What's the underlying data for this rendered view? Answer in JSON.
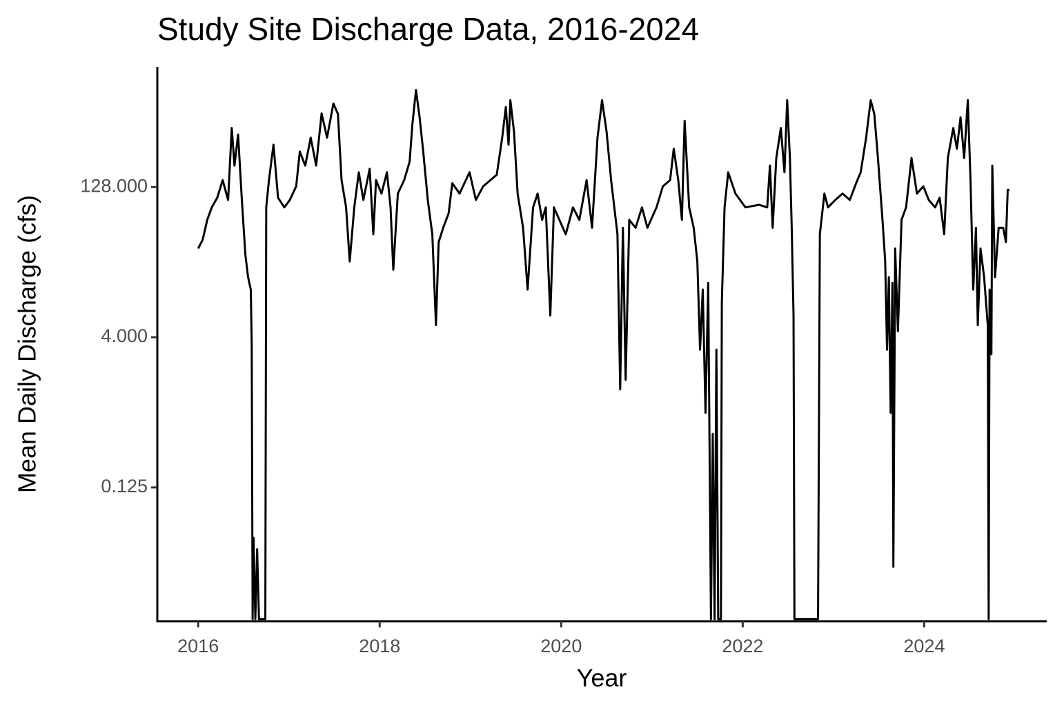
{
  "chart_data": {
    "type": "line",
    "title": "Study Site Discharge Data, 2016-2024",
    "x_label": "Year",
    "y_label": "Mean Daily Discharge (cfs)",
    "color": "#000000",
    "ylog": true,
    "grid": false,
    "xlim": [
      2015.55,
      2025.35
    ],
    "ylim": [
      0.0057,
      2048
    ],
    "xticks": [
      2016,
      2018,
      2020,
      2022,
      2024
    ],
    "yticks": [
      0.125,
      {
        "value": 4,
        "label": "4.000"
      },
      {
        "value": 128,
        "label": "128.000"
      }
    ],
    "x": [
      2016.0,
      2016.05,
      2016.1,
      2016.15,
      2016.21,
      2016.27,
      2016.33,
      2016.37,
      2016.4,
      2016.44,
      2016.48,
      2016.52,
      2016.55,
      2016.58,
      2016.59,
      2016.6,
      2016.61,
      2016.63,
      2016.65,
      2016.67,
      2016.74,
      2016.75,
      2016.78,
      2016.83,
      2016.88,
      2016.95,
      2017.01,
      2017.08,
      2017.12,
      2017.18,
      2017.24,
      2017.3,
      2017.36,
      2017.42,
      2017.49,
      2017.54,
      2017.58,
      2017.63,
      2017.67,
      2017.72,
      2017.77,
      2017.82,
      2017.89,
      2017.93,
      2017.96,
      2018.02,
      2018.08,
      2018.12,
      2018.15,
      2018.2,
      2018.27,
      2018.33,
      2018.36,
      2018.4,
      2018.44,
      2018.48,
      2018.53,
      2018.58,
      2018.62,
      2018.65,
      2018.7,
      2018.76,
      2018.8,
      2018.88,
      2018.99,
      2019.06,
      2019.14,
      2019.22,
      2019.29,
      2019.35,
      2019.39,
      2019.42,
      2019.44,
      2019.48,
      2019.52,
      2019.58,
      2019.63,
      2019.69,
      2019.74,
      2019.79,
      2019.83,
      2019.88,
      2019.92,
      2019.98,
      2020.05,
      2020.13,
      2020.2,
      2020.28,
      2020.34,
      2020.4,
      2020.45,
      2020.5,
      2020.55,
      2020.62,
      2020.65,
      2020.68,
      2020.71,
      2020.75,
      2020.82,
      2020.89,
      2020.95,
      2021.05,
      2021.12,
      2021.2,
      2021.24,
      2021.29,
      2021.33,
      2021.36,
      2021.41,
      2021.46,
      2021.5,
      2021.53,
      2021.56,
      2021.59,
      2021.62,
      2021.65,
      2021.67,
      2021.69,
      2021.71,
      2021.73,
      2021.76,
      2021.77,
      2021.8,
      2021.84,
      2021.92,
      2022.03,
      2022.18,
      2022.27,
      2022.3,
      2022.33,
      2022.37,
      2022.42,
      2022.46,
      2022.49,
      2022.52,
      2022.54,
      2022.56,
      2022.57,
      2022.83,
      2022.85,
      2022.9,
      2022.94,
      2023.02,
      2023.1,
      2023.18,
      2023.25,
      2023.3,
      2023.36,
      2023.41,
      2023.45,
      2023.49,
      2023.54,
      2023.57,
      2023.59,
      2023.61,
      2023.63,
      2023.65,
      2023.66,
      2023.68,
      2023.71,
      2023.75,
      2023.8,
      2023.86,
      2023.92,
      2023.99,
      2024.05,
      2024.12,
      2024.17,
      2024.22,
      2024.26,
      2024.32,
      2024.36,
      2024.4,
      2024.44,
      2024.48,
      2024.51,
      2024.54,
      2024.57,
      2024.59,
      2024.62,
      2024.66,
      2024.7,
      2024.71,
      2024.72,
      2024.74,
      2024.75,
      2024.78,
      2024.82,
      2024.87,
      2024.9,
      2024.92,
      2024.94
    ],
    "values": [
      31,
      38,
      60,
      80,
      100,
      150,
      95,
      500,
      210,
      430,
      100,
      27,
      16,
      12,
      3.4,
      0.006,
      0.039,
      0.006,
      0.03,
      0.006,
      0.006,
      80,
      150,
      340,
      100,
      80,
      95,
      130,
      290,
      210,
      400,
      210,
      700,
      400,
      880,
      690,
      150,
      80,
      23,
      80,
      180,
      95,
      195,
      43,
      150,
      110,
      180,
      80,
      19,
      110,
      150,
      230,
      540,
      1200,
      640,
      290,
      95,
      43,
      5.3,
      36,
      50,
      70,
      140,
      110,
      180,
      95,
      130,
      150,
      170,
      400,
      810,
      340,
      950,
      460,
      110,
      50,
      12,
      80,
      110,
      60,
      80,
      6.6,
      80,
      60,
      43,
      80,
      60,
      150,
      50,
      400,
      950,
      460,
      150,
      43,
      1.2,
      50,
      1.5,
      60,
      50,
      80,
      50,
      80,
      130,
      150,
      310,
      150,
      60,
      590,
      80,
      50,
      23,
      3,
      12,
      0.7,
      14,
      0.006,
      0.43,
      0.006,
      3,
      0.006,
      0.006,
      9,
      80,
      180,
      110,
      80,
      85,
      80,
      210,
      50,
      250,
      500,
      180,
      950,
      250,
      50,
      6.6,
      0.006,
      0.006,
      43,
      110,
      80,
      95,
      110,
      95,
      140,
      180,
      400,
      950,
      690,
      250,
      60,
      23,
      3,
      16,
      0.7,
      14,
      0.02,
      31,
      4.6,
      60,
      80,
      250,
      110,
      130,
      95,
      80,
      100,
      43,
      250,
      500,
      310,
      640,
      250,
      950,
      150,
      12,
      50,
      5.3,
      31,
      16,
      5.3,
      0.006,
      12,
      2.7,
      210,
      16,
      50,
      50,
      36,
      120,
      120
    ]
  }
}
